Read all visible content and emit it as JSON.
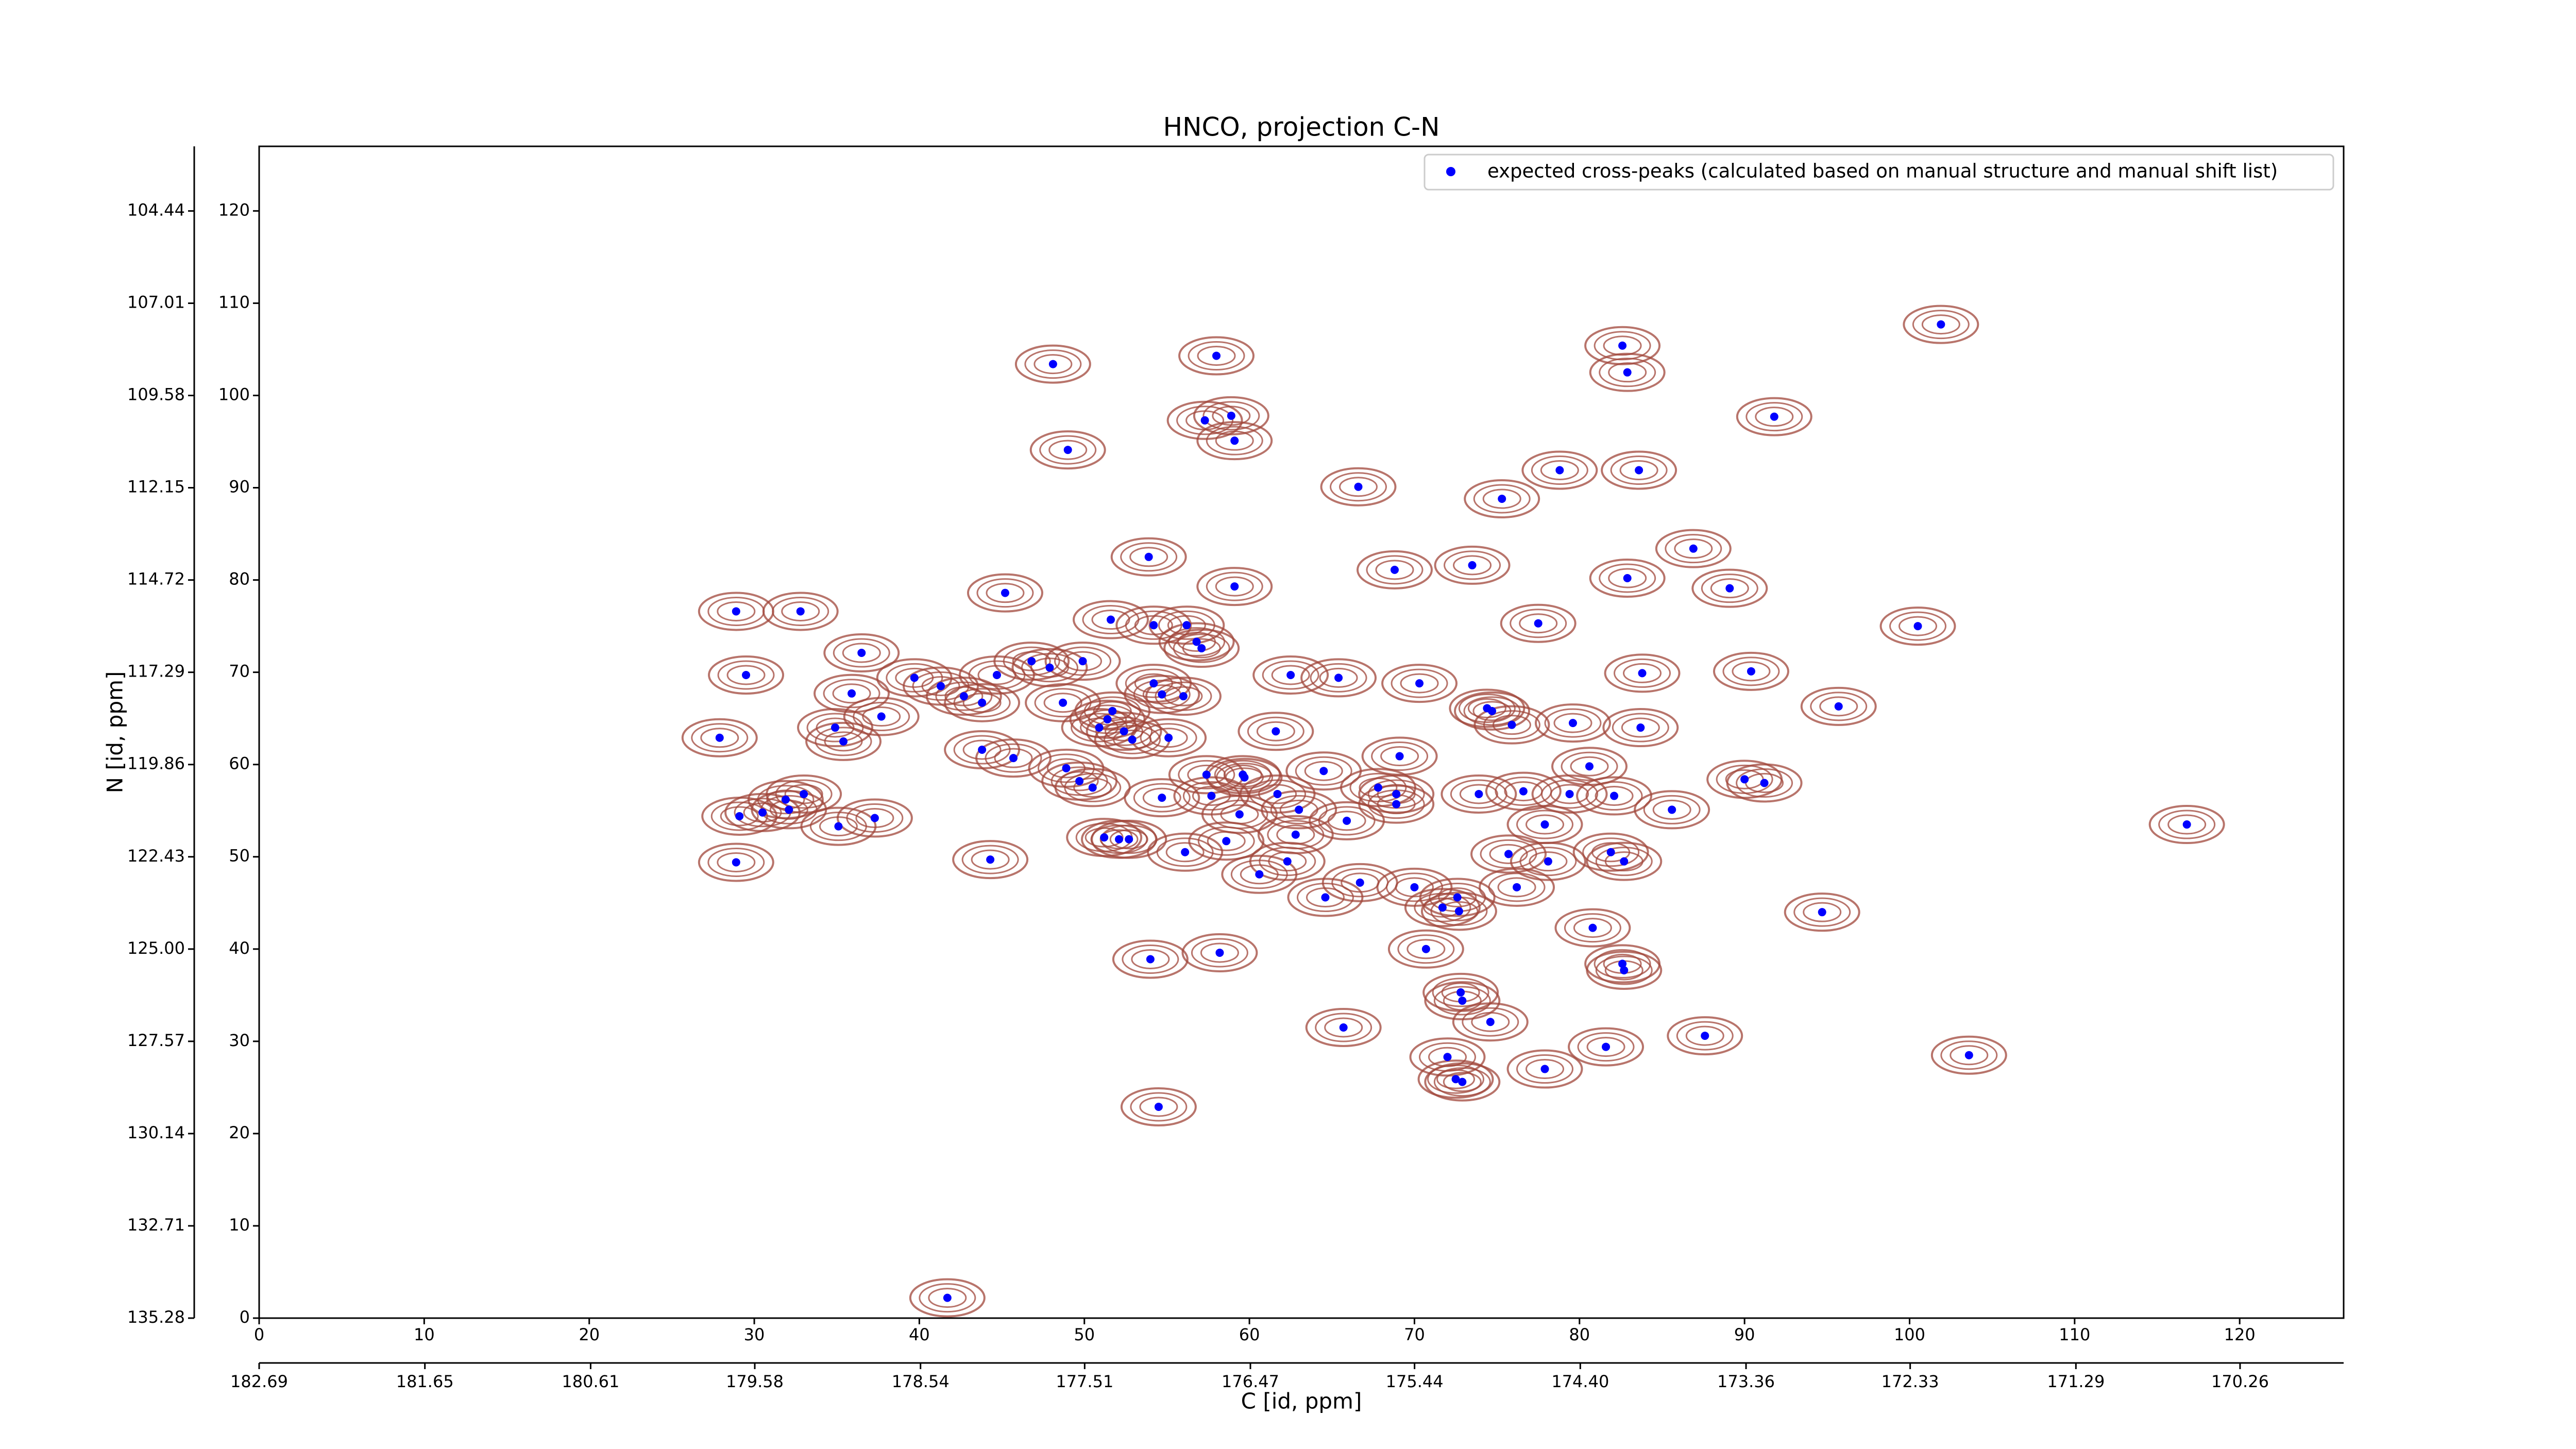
{
  "chart_data": {
    "type": "scatter",
    "title": "HNCO, projection C-N",
    "xlabel": "C [id, ppm]",
    "ylabel": "N [id, ppm]",
    "legend": "upper right",
    "contour_color": "#a0453a",
    "xlim": [
      0,
      126.3
    ],
    "ylim": [
      0,
      127
    ],
    "xticks": [
      0,
      10,
      20,
      30,
      40,
      50,
      60,
      70,
      80,
      90,
      100,
      110,
      120
    ],
    "yticks": [
      0,
      10,
      20,
      30,
      40,
      50,
      60,
      70,
      80,
      90,
      100,
      110,
      120
    ],
    "x2lim": [
      182.69,
      169.61
    ],
    "x2ticks": [
      182.69,
      181.65,
      180.61,
      179.58,
      178.54,
      177.51,
      176.47,
      175.44,
      {
        "value": 174.4,
        "label": "174.40"
      },
      173.36,
      172.33,
      171.29,
      170.26
    ],
    "y2lim": [
      135.28,
      102.64
    ],
    "y2ticks": [
      135.28,
      132.71,
      130.14,
      127.57,
      {
        "value": 125,
        "label": "125.00"
      },
      122.43,
      119.86,
      117.29,
      114.72,
      112.15,
      109.58,
      107.01,
      104.44
    ],
    "series": [
      {
        "name": "expected cross-peaks (calculated based on manual structure and manual shift list)",
        "color": "#0000ff",
        "x": [
          101.9,
          82.6,
          82.9,
          48.1,
          58.0,
          57.3,
          58.9,
          59.1,
          91.8,
          49.0,
          66.6,
          78.8,
          83.6,
          75.3,
          86.9,
          53.9,
          68.8,
          73.5,
          82.9,
          89.1,
          59.1,
          45.2,
          28.9,
          32.8,
          51.6,
          54.2,
          56.2,
          56.8,
          57.1,
          77.5,
          100.5,
          36.5,
          29.5,
          46.8,
          47.9,
          49.9,
          44.7,
          39.7,
          41.3,
          42.7,
          43.8,
          35.9,
          54.2,
          54.7,
          56.0,
          62.5,
          65.4,
          70.3,
          48.7,
          51.7,
          51.4,
          37.7,
          74.4,
          74.7,
          75.9,
          79.6,
          83.7,
          83.8,
          90.4,
          95.7,
          27.9,
          34.9,
          35.4,
          50.9,
          52.4,
          52.9,
          55.1,
          61.6,
          43.8,
          45.7,
          48.9,
          49.7,
          50.5,
          57.4,
          59.6,
          59.7,
          64.5,
          69.1,
          80.6,
          57.7,
          61.7,
          54.7,
          67.8,
          68.9,
          68.9,
          73.9,
          76.6,
          79.4,
          82.1,
          90.0,
          91.2,
          85.6,
          31.9,
          33.0,
          32.1,
          29.1,
          30.5,
          37.3,
          35.1,
          116.8,
          77.9,
          59.4,
          63.0,
          65.9,
          51.2,
          52.1,
          52.7,
          58.6,
          62.8,
          56.1,
          62.3,
          44.3,
          28.9,
          75.7,
          78.1,
          81.9,
          82.7,
          60.6,
          66.7,
          70.0,
          76.2,
          64.6,
          71.7,
          72.6,
          72.7,
          94.7,
          80.8,
          70.7,
          58.2,
          54.0,
          82.6,
          82.7,
          72.8,
          72.9,
          74.6,
          65.7,
          87.6,
          81.6,
          103.6,
          72.0,
          77.9,
          72.5,
          72.9,
          54.5,
          41.7
        ],
        "values": [
          107.7,
          105.4,
          102.5,
          103.4,
          104.3,
          97.3,
          97.8,
          95.1,
          97.7,
          94.1,
          90.1,
          91.9,
          91.9,
          88.8,
          83.4,
          82.5,
          81.1,
          81.6,
          80.2,
          79.1,
          79.3,
          78.6,
          76.6,
          76.6,
          75.7,
          75.1,
          75.1,
          73.3,
          72.6,
          75.3,
          75.0,
          72.1,
          69.7,
          71.2,
          70.5,
          71.2,
          69.7,
          69.4,
          68.5,
          67.4,
          66.7,
          67.7,
          68.8,
          67.6,
          67.4,
          69.7,
          69.4,
          68.8,
          66.7,
          65.8,
          64.9,
          65.2,
          66.1,
          65.8,
          64.3,
          64.5,
          64.0,
          69.9,
          70.1,
          66.3,
          62.9,
          64.0,
          62.5,
          64.0,
          63.6,
          62.7,
          62.9,
          63.6,
          61.6,
          60.7,
          59.6,
          58.2,
          57.5,
          58.9,
          58.9,
          58.6,
          59.3,
          60.9,
          59.8,
          56.6,
          56.8,
          56.4,
          57.5,
          56.8,
          55.7,
          56.8,
          57.1,
          56.8,
          56.6,
          58.4,
          58.0,
          55.1,
          56.2,
          56.8,
          55.1,
          54.4,
          54.8,
          54.2,
          53.3,
          53.5,
          53.5,
          54.6,
          55.1,
          53.9,
          52.1,
          51.9,
          51.9,
          51.7,
          52.4,
          50.5,
          49.5,
          49.7,
          49.4,
          50.3,
          49.5,
          50.5,
          49.5,
          48.1,
          47.2,
          46.7,
          46.7,
          45.6,
          44.5,
          45.6,
          44.1,
          44.0,
          42.3,
          40.0,
          39.6,
          38.9,
          38.4,
          37.7,
          35.3,
          34.4,
          32.1,
          31.5,
          30.6,
          29.4,
          28.5,
          28.3,
          27.0,
          25.9,
          25.6,
          22.9,
          2.2
        ]
      }
    ]
  }
}
